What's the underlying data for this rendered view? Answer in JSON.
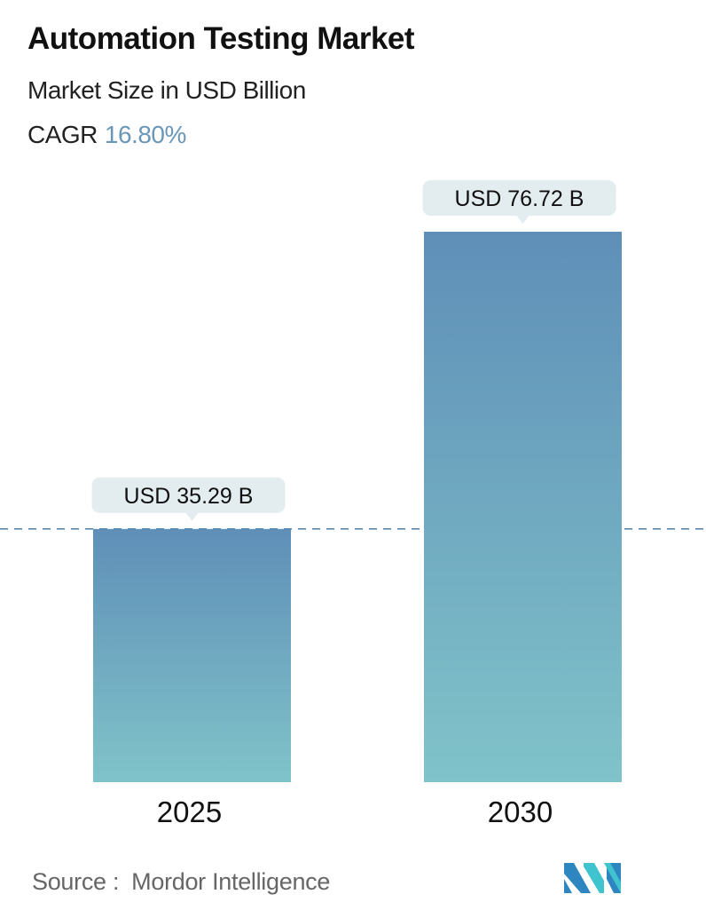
{
  "header": {
    "title": "Automation Testing Market",
    "subtitle": "Market Size in USD Billion",
    "cagr_label": "CAGR",
    "cagr_value": "16.80%"
  },
  "chart_data": {
    "type": "bar",
    "categories": [
      "2025",
      "2030"
    ],
    "values": [
      35.29,
      76.72
    ],
    "data_labels": [
      "USD 35.29 B",
      "USD 76.72 B"
    ],
    "title": "Automation Testing Market",
    "ylabel": "",
    "xlabel": "",
    "ylim": [
      0,
      76.72
    ],
    "grid": false,
    "reference_line": {
      "value": 35.29,
      "style": "dashed"
    },
    "colors": {
      "bar_top": "#5f8fb8",
      "bar_bottom": "#80c3c9",
      "label_bg": "#e3ecef",
      "dash": "#4f7c9e",
      "cagr": "#6a97b8"
    }
  },
  "footer": {
    "source_label": "Source :",
    "source_name": "Mordor Intelligence",
    "logo_text": "MI"
  }
}
